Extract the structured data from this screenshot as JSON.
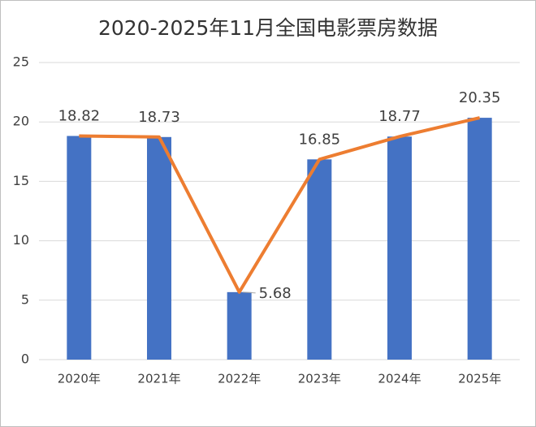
{
  "chart_data": {
    "type": "bar",
    "title": "2020-2025年11月全国电影票房数据",
    "categories": [
      "2020年",
      "2021年",
      "2022年",
      "2023年",
      "2024年",
      "2025年"
    ],
    "values": [
      18.82,
      18.73,
      5.68,
      16.85,
      18.77,
      20.35
    ],
    "color": "#4472c4",
    "line_overlay": true,
    "line_color": "#ed7d31",
    "ylim": [
      0,
      25
    ],
    "yticks": [
      0,
      5,
      10,
      15,
      20,
      25
    ],
    "grid": true
  }
}
